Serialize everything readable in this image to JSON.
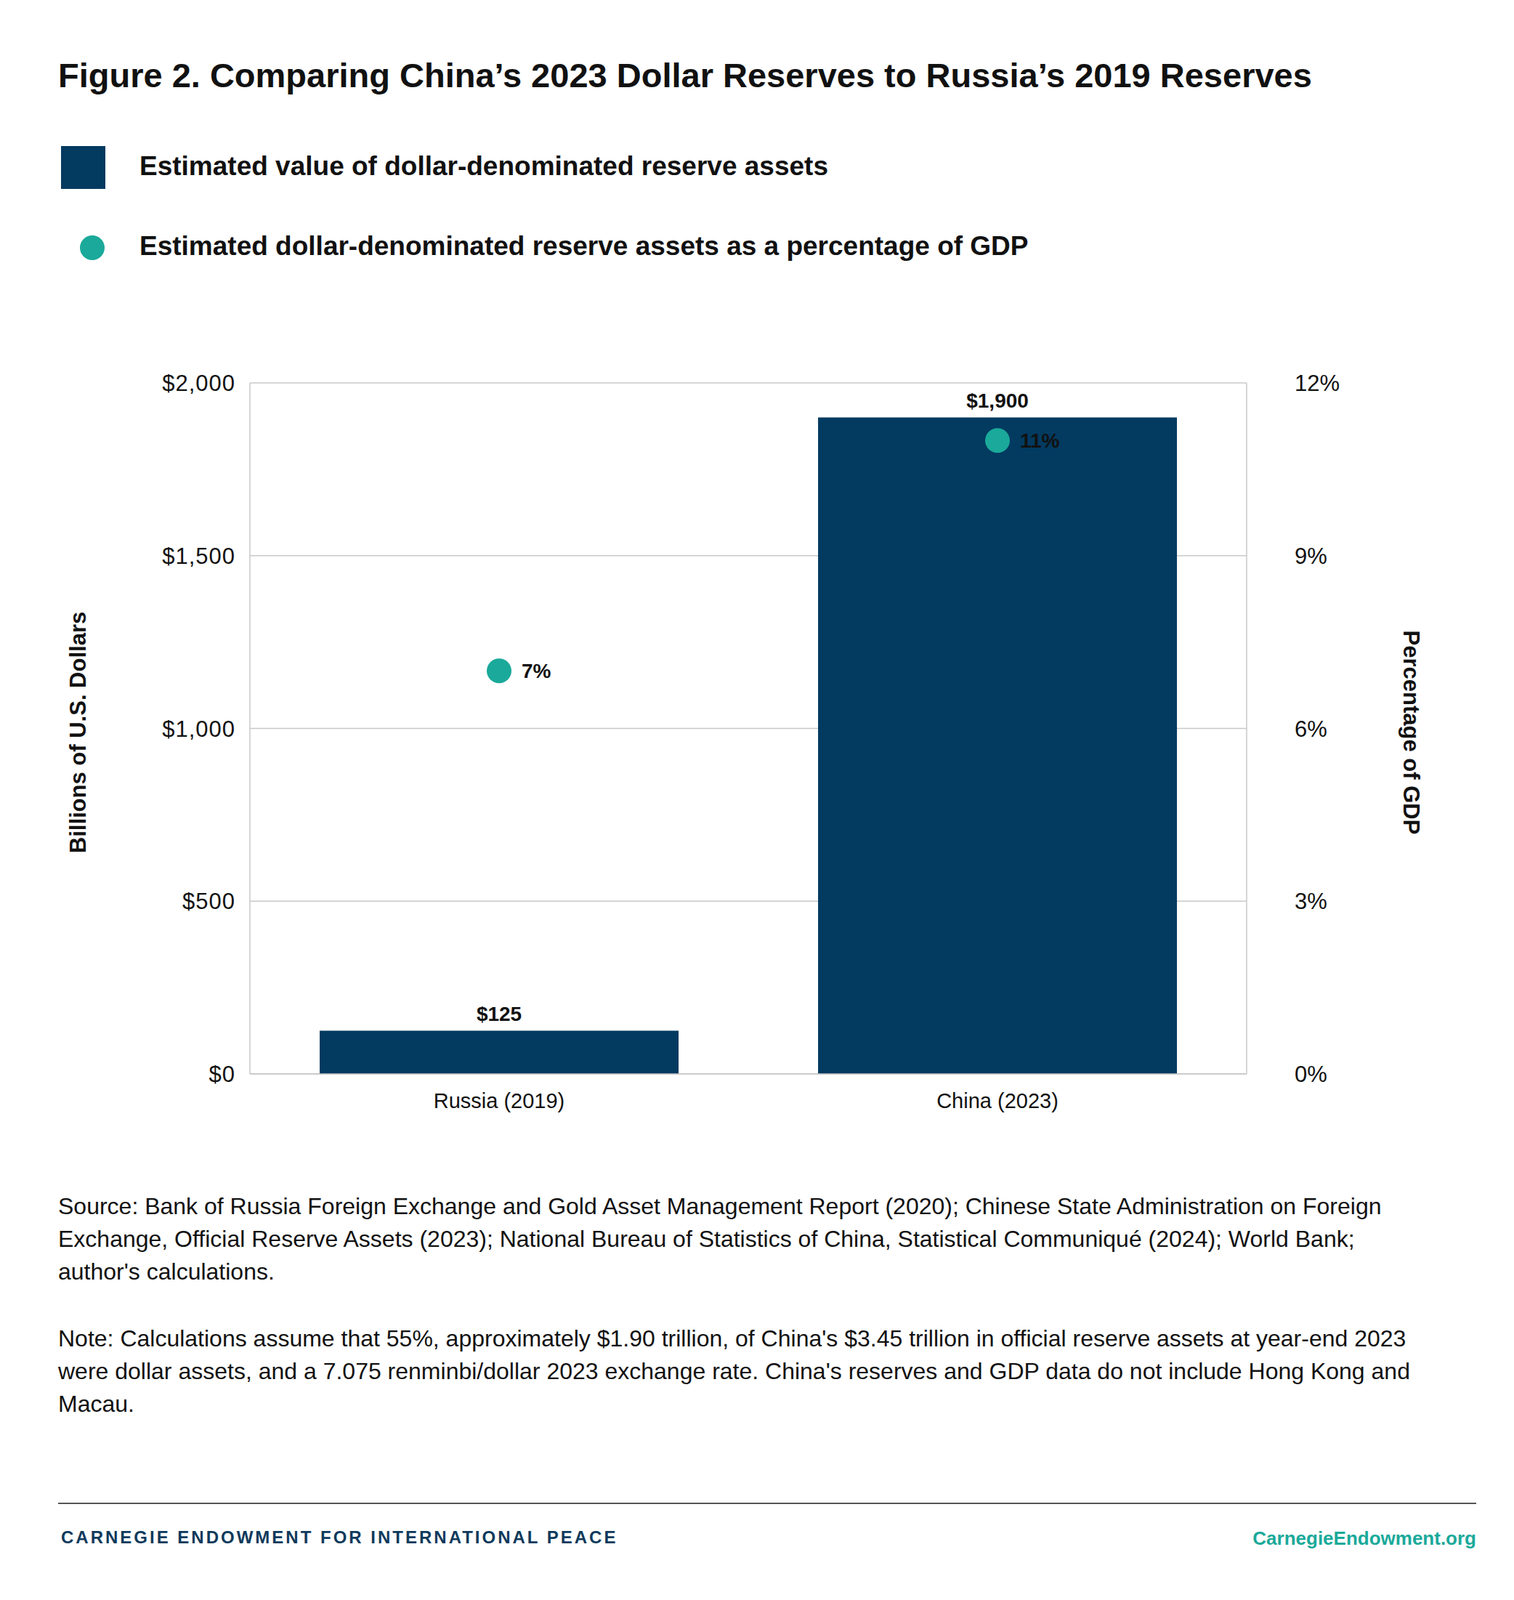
{
  "chart_data": {
    "type": "bar",
    "title": "Figure 2. Comparing China’s 2023 Dollar Reserves to Russia’s 2019 Reserves",
    "categories": [
      "Russia (2019)",
      "China (2023)"
    ],
    "series": [
      {
        "name": "Estimated value of dollar-denominated reserve assets",
        "type": "bar",
        "color": "#023a60",
        "values": [
          125,
          1900
        ],
        "value_labels": [
          "$125",
          "$1,900"
        ]
      },
      {
        "name": "Estimated dollar-denominated reserve assets as a percentage of GDP",
        "type": "scatter",
        "marker": "circle",
        "color": "#1aa99a",
        "axis": "y2",
        "values": [
          7,
          11
        ],
        "value_labels": [
          "7%",
          "11%"
        ]
      }
    ],
    "ylabel": "Billions of U.S. Dollars",
    "y2label": "Percentage of GDP",
    "ylim": [
      0,
      2000
    ],
    "yticks": [
      {
        "value": 0,
        "label": "$0"
      },
      {
        "value": 500,
        "label": "$500"
      },
      {
        "value": 1000,
        "label": "$1,000"
      },
      {
        "value": 1500,
        "label": "$1,500"
      },
      {
        "value": 2000,
        "label": "$2,000"
      }
    ],
    "y2lim": [
      0,
      12
    ],
    "y2ticks": [
      {
        "value": 0,
        "label": "0%"
      },
      {
        "value": 3,
        "label": "3%"
      },
      {
        "value": 6,
        "label": "6%"
      },
      {
        "value": 9,
        "label": "9%"
      },
      {
        "value": 12,
        "label": "12%"
      }
    ],
    "grid": true,
    "legend": "top left",
    "data_labels": true,
    "annotations": [
      "Source: Bank of Russia Foreign Exchange and Gold Asset Management Report (2020); Chinese State Administration on Foreign Exchange, Official Reserve Assets (2023); National Bureau of Statistics of China, Statistical Communiqué (2024); World Bank; author's calculations.",
      "Note: Calculations assume that 55%, approximately $1.90 trillion, of China's $3.45 trillion in official reserve assets at year-end 2023 were dollar assets, and a 7.075 renminbi/dollar 2023 exchange rate. China's reserves and GDP data do not include Hong Kong and Macau.",
      "CARNEGIE ENDOWMENT FOR INTERNATIONAL PEACE",
      "CarnegieEndowment.org"
    ]
  }
}
